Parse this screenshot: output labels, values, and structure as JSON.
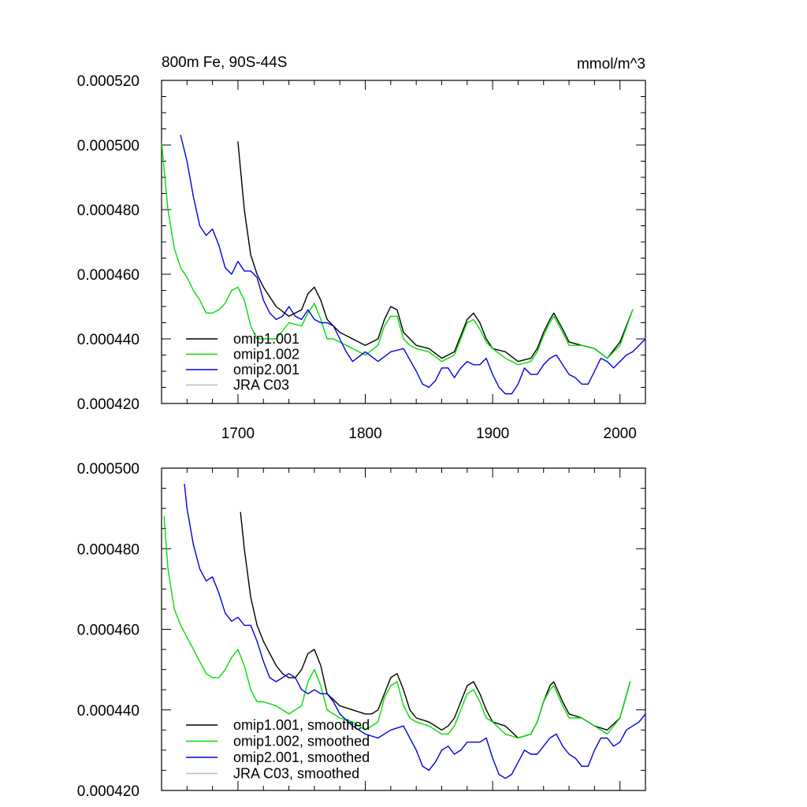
{
  "chart_data": [
    {
      "type": "line",
      "title_left": "800m Fe, 90S-44S",
      "title_right": "mmol/m^3",
      "xlim": [
        1640,
        2020
      ],
      "ylim": [
        0.00042,
        0.00052
      ],
      "xticks": [
        1700,
        1800,
        1900,
        2000
      ],
      "xtick_labels": [
        "1700",
        "1800",
        "1900",
        "2000"
      ],
      "yticks": [
        0.00042,
        0.00044,
        0.00046,
        0.00048,
        0.0005,
        0.00052
      ],
      "ytick_labels": [
        "0.000420",
        "0.000440",
        "0.000460",
        "0.000480",
        "0.000500",
        "0.000520"
      ],
      "legend": [
        "omip1.001",
        "omip1.002",
        "omip2.001",
        "JRA C03"
      ],
      "series": [
        {
          "name": "omip1.001",
          "color": "#000000",
          "x": [
            1700,
            1705,
            1710,
            1715,
            1720,
            1725,
            1730,
            1740,
            1750,
            1755,
            1760,
            1765,
            1770,
            1775,
            1780,
            1790,
            1800,
            1810,
            1815,
            1820,
            1825,
            1830,
            1835,
            1840,
            1850,
            1860,
            1870,
            1875,
            1880,
            1885,
            1890,
            1895,
            1900,
            1910,
            1920,
            1930,
            1935,
            1940,
            1945,
            1948,
            1955,
            1960,
            1970,
            1980,
            1990,
            2000,
            2010
          ],
          "y": [
            0.000501,
            0.00048,
            0.000466,
            0.00046,
            0.000456,
            0.000453,
            0.00045,
            0.000447,
            0.000449,
            0.000454,
            0.000456,
            0.000452,
            0.000446,
            0.000444,
            0.000442,
            0.00044,
            0.000438,
            0.00044,
            0.000446,
            0.00045,
            0.000449,
            0.000442,
            0.00044,
            0.000438,
            0.000437,
            0.000434,
            0.000436,
            0.000441,
            0.000446,
            0.000448,
            0.000445,
            0.00044,
            0.000437,
            0.000436,
            0.000433,
            0.000434,
            0.000437,
            0.000442,
            0.000446,
            0.000448,
            0.000443,
            0.000439,
            0.000438,
            0.000437,
            0.000434,
            0.000439,
            0.000449
          ]
        },
        {
          "name": "omip1.002",
          "color": "#00dd00",
          "x": [
            1640,
            1645,
            1650,
            1655,
            1660,
            1665,
            1670,
            1675,
            1680,
            1685,
            1690,
            1695,
            1700,
            1705,
            1710,
            1715,
            1720,
            1730,
            1740,
            1750,
            1755,
            1760,
            1765,
            1770,
            1775,
            1780,
            1790,
            1800,
            1810,
            1815,
            1820,
            1825,
            1830,
            1835,
            1840,
            1850,
            1860,
            1870,
            1875,
            1880,
            1885,
            1890,
            1895,
            1900,
            1910,
            1920,
            1930,
            1935,
            1940,
            1945,
            1948,
            1955,
            1960,
            1970,
            1980,
            1990,
            2000,
            2010
          ],
          "y": [
            0.000501,
            0.00048,
            0.000468,
            0.000462,
            0.000459,
            0.000455,
            0.000452,
            0.000448,
            0.000448,
            0.000449,
            0.000451,
            0.000455,
            0.000456,
            0.000452,
            0.000444,
            0.00044,
            0.00044,
            0.00044,
            0.000445,
            0.000444,
            0.000448,
            0.000451,
            0.000446,
            0.00044,
            0.00044,
            0.000439,
            0.000437,
            0.000435,
            0.000438,
            0.000444,
            0.000447,
            0.000447,
            0.00044,
            0.000438,
            0.000437,
            0.000436,
            0.000433,
            0.000435,
            0.00044,
            0.000445,
            0.000446,
            0.000443,
            0.000439,
            0.000437,
            0.000434,
            0.000432,
            0.000433,
            0.000436,
            0.000441,
            0.000445,
            0.000447,
            0.000442,
            0.000438,
            0.000438,
            0.000437,
            0.000434,
            0.000438,
            0.000449
          ]
        },
        {
          "name": "omip2.001",
          "color": "#0000dd",
          "x": [
            1655,
            1660,
            1665,
            1670,
            1675,
            1680,
            1685,
            1690,
            1695,
            1700,
            1705,
            1710,
            1715,
            1720,
            1725,
            1730,
            1735,
            1740,
            1745,
            1750,
            1755,
            1760,
            1765,
            1770,
            1775,
            1780,
            1785,
            1790,
            1800,
            1810,
            1820,
            1830,
            1840,
            1845,
            1850,
            1855,
            1860,
            1865,
            1870,
            1875,
            1880,
            1885,
            1890,
            1895,
            1900,
            1905,
            1910,
            1915,
            1920,
            1925,
            1930,
            1935,
            1940,
            1945,
            1950,
            1955,
            1960,
            1965,
            1970,
            1975,
            1980,
            1985,
            1990,
            1995,
            2000,
            2005,
            2010,
            2015,
            2020
          ],
          "y": [
            0.000503,
            0.000495,
            0.000484,
            0.000475,
            0.000472,
            0.000474,
            0.000469,
            0.000462,
            0.00046,
            0.000464,
            0.000461,
            0.000461,
            0.000459,
            0.000452,
            0.000448,
            0.000446,
            0.000447,
            0.00045,
            0.000447,
            0.000446,
            0.000449,
            0.000446,
            0.000445,
            0.000445,
            0.000444,
            0.00044,
            0.000436,
            0.000433,
            0.000436,
            0.000433,
            0.000436,
            0.000437,
            0.00043,
            0.000426,
            0.000425,
            0.000427,
            0.000431,
            0.000431,
            0.000428,
            0.000431,
            0.000433,
            0.000432,
            0.000432,
            0.000434,
            0.000429,
            0.000425,
            0.000423,
            0.000423,
            0.000426,
            0.000431,
            0.000429,
            0.000429,
            0.000432,
            0.000434,
            0.000435,
            0.000432,
            0.000429,
            0.000428,
            0.000426,
            0.000426,
            0.00043,
            0.000434,
            0.000433,
            0.000431,
            0.000433,
            0.000435,
            0.000436,
            0.000438,
            0.00044
          ]
        },
        {
          "name": "JRA C03",
          "color": "#bbbbbb",
          "x": [],
          "y": []
        }
      ]
    },
    {
      "type": "line",
      "xlim": [
        1640,
        2020
      ],
      "ylim": [
        0.00042,
        0.0005
      ],
      "yticks": [
        0.00042,
        0.00044,
        0.00046,
        0.00048,
        0.0005
      ],
      "ytick_labels": [
        "0.000420",
        "0.000440",
        "0.000460",
        "0.000480",
        "0.000500"
      ],
      "legend": [
        "omip1.001, smoothed",
        "omip1.002, smoothed",
        "omip2.001, smoothed",
        "JRA C03, smoothed"
      ],
      "series": [
        {
          "name": "omip1.001, smoothed",
          "color": "#000000",
          "x": [
            1702,
            1705,
            1710,
            1715,
            1720,
            1725,
            1730,
            1735,
            1740,
            1745,
            1750,
            1755,
            1760,
            1765,
            1770,
            1780,
            1790,
            1800,
            1805,
            1810,
            1815,
            1820,
            1825,
            1830,
            1835,
            1840,
            1850,
            1860,
            1865,
            1870,
            1875,
            1880,
            1885,
            1890,
            1895,
            1900,
            1910,
            1920,
            1930,
            1935,
            1940,
            1945,
            1948,
            1955,
            1960,
            1970,
            1980,
            1990,
            2000,
            2008
          ],
          "y": [
            0.000489,
            0.00048,
            0.000468,
            0.000461,
            0.000457,
            0.000454,
            0.000451,
            0.000449,
            0.000448,
            0.000448,
            0.00045,
            0.000454,
            0.000455,
            0.000451,
            0.000444,
            0.000441,
            0.00044,
            0.000439,
            0.000439,
            0.00044,
            0.000444,
            0.000448,
            0.000449,
            0.000445,
            0.00044,
            0.000438,
            0.000437,
            0.000435,
            0.000436,
            0.000438,
            0.000442,
            0.000446,
            0.000447,
            0.000444,
            0.00044,
            0.000437,
            0.000436,
            0.000433,
            0.000434,
            0.000437,
            0.000442,
            0.000446,
            0.000447,
            0.000442,
            0.000439,
            0.000438,
            0.000436,
            0.000435,
            0.000438,
            0.000447
          ]
        },
        {
          "name": "omip1.002, smoothed",
          "color": "#00dd00",
          "x": [
            1642,
            1645,
            1650,
            1655,
            1660,
            1665,
            1670,
            1675,
            1680,
            1685,
            1690,
            1695,
            1700,
            1705,
            1710,
            1715,
            1720,
            1730,
            1740,
            1750,
            1755,
            1760,
            1765,
            1770,
            1780,
            1790,
            1800,
            1810,
            1815,
            1820,
            1825,
            1830,
            1835,
            1840,
            1850,
            1860,
            1865,
            1870,
            1875,
            1880,
            1885,
            1890,
            1895,
            1900,
            1910,
            1920,
            1930,
            1935,
            1940,
            1945,
            1948,
            1955,
            1960,
            1970,
            1980,
            1990,
            2000,
            2008
          ],
          "y": [
            0.000488,
            0.000475,
            0.000465,
            0.000461,
            0.000458,
            0.000455,
            0.000452,
            0.000449,
            0.000448,
            0.000448,
            0.00045,
            0.000453,
            0.000455,
            0.000451,
            0.000445,
            0.000442,
            0.000442,
            0.000441,
            0.000439,
            0.000441,
            0.000447,
            0.00045,
            0.000446,
            0.00044,
            0.000438,
            0.000437,
            0.000435,
            0.000437,
            0.000443,
            0.000446,
            0.000447,
            0.000441,
            0.000438,
            0.000437,
            0.000436,
            0.000434,
            0.000434,
            0.000436,
            0.00044,
            0.000444,
            0.000445,
            0.000442,
            0.000438,
            0.000437,
            0.000434,
            0.000433,
            0.000434,
            0.000437,
            0.000442,
            0.000445,
            0.000446,
            0.000441,
            0.000438,
            0.000438,
            0.000436,
            0.000434,
            0.000438,
            0.000447
          ]
        },
        {
          "name": "omip2.001, smoothed",
          "color": "#0000dd",
          "x": [
            1658,
            1660,
            1665,
            1670,
            1675,
            1680,
            1685,
            1690,
            1695,
            1700,
            1705,
            1710,
            1715,
            1720,
            1725,
            1730,
            1735,
            1740,
            1745,
            1750,
            1755,
            1760,
            1765,
            1770,
            1775,
            1780,
            1790,
            1800,
            1810,
            1820,
            1830,
            1840,
            1845,
            1850,
            1855,
            1860,
            1865,
            1870,
            1875,
            1880,
            1885,
            1890,
            1895,
            1900,
            1905,
            1910,
            1915,
            1920,
            1925,
            1930,
            1935,
            1940,
            1945,
            1950,
            1955,
            1960,
            1965,
            1970,
            1975,
            1980,
            1985,
            1990,
            1995,
            2000,
            2005,
            2010,
            2015,
            2020
          ],
          "y": [
            0.000496,
            0.00049,
            0.000481,
            0.000475,
            0.000472,
            0.000473,
            0.000469,
            0.000464,
            0.000462,
            0.000463,
            0.000461,
            0.000461,
            0.000457,
            0.000452,
            0.000448,
            0.000447,
            0.000448,
            0.000449,
            0.000448,
            0.000445,
            0.000444,
            0.000445,
            0.000444,
            0.000444,
            0.000442,
            0.000439,
            0.000436,
            0.000434,
            0.000433,
            0.000435,
            0.000436,
            0.00043,
            0.000426,
            0.000425,
            0.000427,
            0.00043,
            0.000431,
            0.000429,
            0.00043,
            0.000432,
            0.000432,
            0.000432,
            0.000433,
            0.000428,
            0.000424,
            0.000423,
            0.000424,
            0.000427,
            0.00043,
            0.000429,
            0.000429,
            0.000431,
            0.000433,
            0.000434,
            0.000431,
            0.000429,
            0.000428,
            0.000426,
            0.000426,
            0.00043,
            0.000433,
            0.000433,
            0.000431,
            0.000432,
            0.000435,
            0.000436,
            0.000437,
            0.000439
          ]
        },
        {
          "name": "JRA C03, smoothed",
          "color": "#bbbbbb",
          "x": [],
          "y": []
        }
      ]
    }
  ]
}
